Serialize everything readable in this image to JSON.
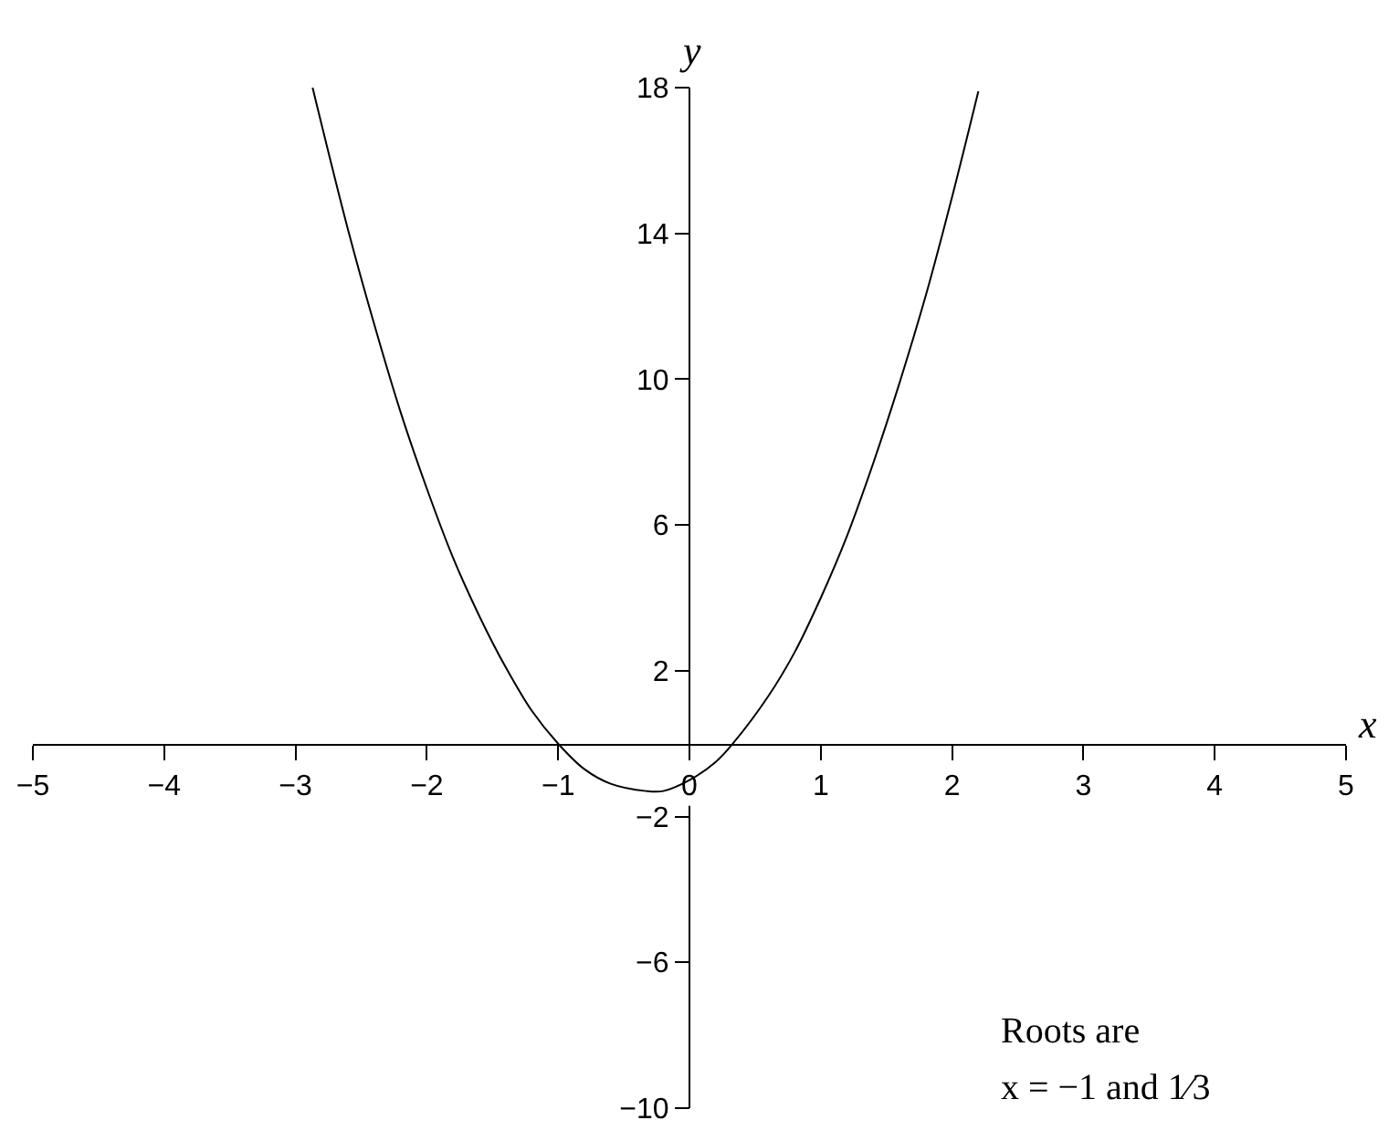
{
  "chart_data": {
    "type": "line",
    "xlabel": "x",
    "ylabel": "y",
    "x": [
      -2.87,
      -2.6,
      -2.4,
      -2.2,
      -2,
      -1.8,
      -1.6,
      -1.4,
      -1.2,
      -1,
      -0.8,
      -0.6,
      -0.33,
      -0.2,
      0,
      0.2,
      0.33,
      0.6,
      0.8,
      1,
      1.2,
      1.4,
      1.6,
      1.8,
      2,
      2.2
    ],
    "series": [
      {
        "color": "#000000",
        "values": [
          18.0,
          14.1,
          11.5,
          9.1,
          7,
          5.1,
          3.5,
          2.1,
          0.9,
          0,
          -0.7,
          -1.1,
          -1.3,
          -1.3,
          -1,
          -0.5,
          0,
          1.3,
          2.5,
          4,
          5.7,
          7.7,
          9.9,
          12.3,
          15,
          17.9
        ]
      }
    ],
    "xlim": [
      -5,
      5
    ],
    "xticks": [
      -5,
      -4,
      -3,
      -2,
      -1,
      0,
      1,
      2,
      3,
      4,
      5
    ],
    "ylim": [
      -10,
      18
    ],
    "yticks": [
      -10,
      -6,
      -2,
      2,
      6,
      10,
      14,
      18
    ],
    "marker": "none",
    "line_style": "solid",
    "annotations": [
      "Roots are",
      "x = −1 and 1⁄3"
    ]
  }
}
